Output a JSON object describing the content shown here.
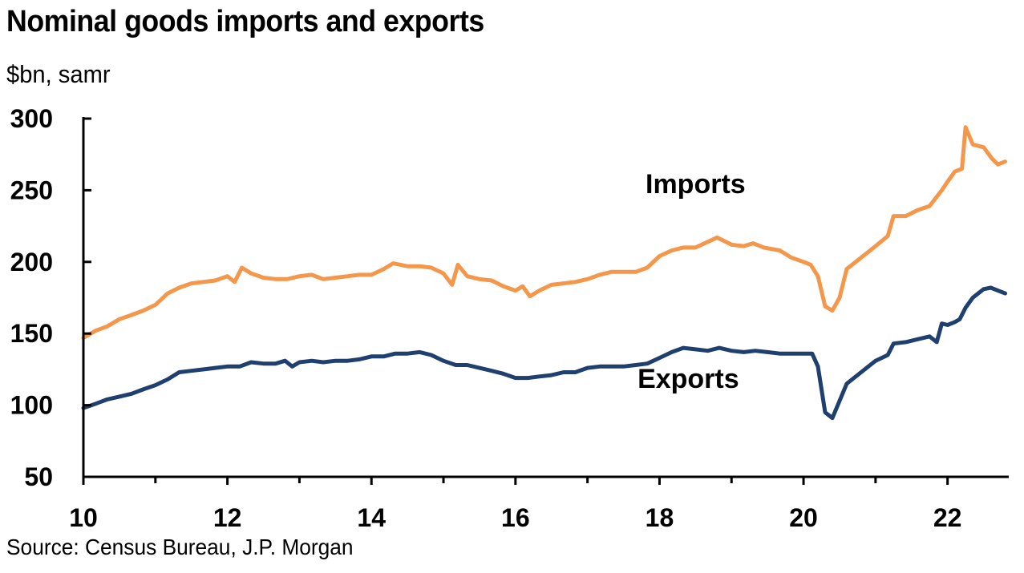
{
  "header": {
    "title": "Nominal goods imports and exports",
    "subtitle": "$bn, samr"
  },
  "footer": {
    "source": "Source: Census Bureau, J.P. Morgan"
  },
  "colors": {
    "imports": "#F4974A",
    "exports": "#1F3F6E",
    "axis": "#000000"
  },
  "chart_data": {
    "type": "line",
    "title": "Nominal goods imports and exports",
    "ylabel": "$bn, samr",
    "xlim": [
      2010,
      2022.85
    ],
    "ylim": [
      50,
      300
    ],
    "grid": false,
    "x_ticks": [
      2010,
      2012,
      2014,
      2016,
      2018,
      2020,
      2022
    ],
    "x_tick_labels": [
      "10",
      "12",
      "14",
      "16",
      "18",
      "20",
      "22"
    ],
    "x_minor_ticks": [
      2011,
      2013,
      2015,
      2017,
      2019,
      2021
    ],
    "y_ticks": [
      50,
      100,
      150,
      200,
      250,
      300
    ],
    "y_tick_labels": [
      "50",
      "100",
      "150",
      "200",
      "250",
      "300"
    ],
    "annotations": [
      {
        "text": "Imports",
        "x": 2018.5,
        "y": 248
      },
      {
        "text": "Exports",
        "x": 2018.4,
        "y": 112
      }
    ],
    "series": [
      {
        "name": "Imports",
        "color": "#F4974A",
        "points": [
          [
            2010.0,
            147
          ],
          [
            2010.17,
            152
          ],
          [
            2010.33,
            155
          ],
          [
            2010.5,
            160
          ],
          [
            2010.67,
            163
          ],
          [
            2010.83,
            166
          ],
          [
            2011.0,
            170
          ],
          [
            2011.17,
            178
          ],
          [
            2011.33,
            182
          ],
          [
            2011.5,
            185
          ],
          [
            2011.67,
            186
          ],
          [
            2011.83,
            187
          ],
          [
            2012.0,
            190
          ],
          [
            2012.1,
            186
          ],
          [
            2012.2,
            196
          ],
          [
            2012.33,
            192
          ],
          [
            2012.5,
            189
          ],
          [
            2012.67,
            188
          ],
          [
            2012.83,
            188
          ],
          [
            2013.0,
            190
          ],
          [
            2013.17,
            191
          ],
          [
            2013.33,
            188
          ],
          [
            2013.5,
            189
          ],
          [
            2013.67,
            190
          ],
          [
            2013.83,
            191
          ],
          [
            2014.0,
            191
          ],
          [
            2014.17,
            195
          ],
          [
            2014.3,
            199
          ],
          [
            2014.5,
            197
          ],
          [
            2014.67,
            197
          ],
          [
            2014.83,
            196
          ],
          [
            2015.0,
            192
          ],
          [
            2015.12,
            184
          ],
          [
            2015.2,
            198
          ],
          [
            2015.33,
            190
          ],
          [
            2015.5,
            188
          ],
          [
            2015.67,
            187
          ],
          [
            2015.83,
            183
          ],
          [
            2016.0,
            180
          ],
          [
            2016.1,
            183
          ],
          [
            2016.2,
            176
          ],
          [
            2016.33,
            180
          ],
          [
            2016.5,
            184
          ],
          [
            2016.67,
            185
          ],
          [
            2016.83,
            186
          ],
          [
            2017.0,
            188
          ],
          [
            2017.17,
            191
          ],
          [
            2017.33,
            193
          ],
          [
            2017.5,
            193
          ],
          [
            2017.67,
            193
          ],
          [
            2017.83,
            196
          ],
          [
            2018.0,
            204
          ],
          [
            2018.17,
            208
          ],
          [
            2018.33,
            210
          ],
          [
            2018.5,
            210
          ],
          [
            2018.67,
            214
          ],
          [
            2018.8,
            217
          ],
          [
            2019.0,
            212
          ],
          [
            2019.17,
            211
          ],
          [
            2019.3,
            213
          ],
          [
            2019.45,
            210
          ],
          [
            2019.67,
            208
          ],
          [
            2019.83,
            203
          ],
          [
            2020.0,
            200
          ],
          [
            2020.1,
            198
          ],
          [
            2020.2,
            190
          ],
          [
            2020.3,
            169
          ],
          [
            2020.4,
            166
          ],
          [
            2020.5,
            175
          ],
          [
            2020.6,
            195
          ],
          [
            2020.75,
            201
          ],
          [
            2020.9,
            207
          ],
          [
            2021.0,
            211
          ],
          [
            2021.17,
            218
          ],
          [
            2021.25,
            232
          ],
          [
            2021.42,
            232
          ],
          [
            2021.58,
            236
          ],
          [
            2021.75,
            239
          ],
          [
            2021.92,
            250
          ],
          [
            2022.0,
            256
          ],
          [
            2022.1,
            263
          ],
          [
            2022.2,
            265
          ],
          [
            2022.25,
            294
          ],
          [
            2022.35,
            282
          ],
          [
            2022.5,
            280
          ],
          [
            2022.62,
            272
          ],
          [
            2022.7,
            268
          ],
          [
            2022.8,
            270
          ]
        ]
      },
      {
        "name": "Exports",
        "color": "#1F3F6E",
        "points": [
          [
            2010.0,
            98
          ],
          [
            2010.17,
            101
          ],
          [
            2010.33,
            104
          ],
          [
            2010.5,
            106
          ],
          [
            2010.67,
            108
          ],
          [
            2010.83,
            111
          ],
          [
            2011.0,
            114
          ],
          [
            2011.17,
            118
          ],
          [
            2011.33,
            123
          ],
          [
            2011.5,
            124
          ],
          [
            2011.67,
            125
          ],
          [
            2011.83,
            126
          ],
          [
            2012.0,
            127
          ],
          [
            2012.17,
            127
          ],
          [
            2012.33,
            130
          ],
          [
            2012.5,
            129
          ],
          [
            2012.67,
            129
          ],
          [
            2012.8,
            131
          ],
          [
            2012.9,
            127
          ],
          [
            2013.0,
            130
          ],
          [
            2013.17,
            131
          ],
          [
            2013.33,
            130
          ],
          [
            2013.5,
            131
          ],
          [
            2013.67,
            131
          ],
          [
            2013.83,
            132
          ],
          [
            2014.0,
            134
          ],
          [
            2014.17,
            134
          ],
          [
            2014.33,
            136
          ],
          [
            2014.5,
            136
          ],
          [
            2014.67,
            137
          ],
          [
            2014.83,
            135
          ],
          [
            2015.0,
            131
          ],
          [
            2015.17,
            128
          ],
          [
            2015.33,
            128
          ],
          [
            2015.5,
            126
          ],
          [
            2015.67,
            124
          ],
          [
            2015.83,
            122
          ],
          [
            2016.0,
            119
          ],
          [
            2016.17,
            119
          ],
          [
            2016.33,
            120
          ],
          [
            2016.5,
            121
          ],
          [
            2016.67,
            123
          ],
          [
            2016.83,
            123
          ],
          [
            2017.0,
            126
          ],
          [
            2017.17,
            127
          ],
          [
            2017.33,
            127
          ],
          [
            2017.5,
            127
          ],
          [
            2017.67,
            128
          ],
          [
            2017.83,
            129
          ],
          [
            2018.0,
            133
          ],
          [
            2018.17,
            137
          ],
          [
            2018.33,
            140
          ],
          [
            2018.5,
            139
          ],
          [
            2018.67,
            138
          ],
          [
            2018.83,
            140
          ],
          [
            2019.0,
            138
          ],
          [
            2019.17,
            137
          ],
          [
            2019.33,
            138
          ],
          [
            2019.5,
            137
          ],
          [
            2019.67,
            136
          ],
          [
            2019.83,
            136
          ],
          [
            2020.0,
            136
          ],
          [
            2020.12,
            136
          ],
          [
            2020.2,
            127
          ],
          [
            2020.3,
            95
          ],
          [
            2020.4,
            91
          ],
          [
            2020.5,
            103
          ],
          [
            2020.6,
            115
          ],
          [
            2020.75,
            121
          ],
          [
            2020.9,
            127
          ],
          [
            2021.0,
            131
          ],
          [
            2021.17,
            135
          ],
          [
            2021.25,
            143
          ],
          [
            2021.42,
            144
          ],
          [
            2021.58,
            146
          ],
          [
            2021.75,
            148
          ],
          [
            2021.85,
            144
          ],
          [
            2021.92,
            157
          ],
          [
            2022.0,
            156
          ],
          [
            2022.1,
            158
          ],
          [
            2022.17,
            160
          ],
          [
            2022.25,
            168
          ],
          [
            2022.35,
            175
          ],
          [
            2022.5,
            181
          ],
          [
            2022.6,
            182
          ],
          [
            2022.7,
            180
          ],
          [
            2022.8,
            178
          ]
        ]
      }
    ]
  }
}
